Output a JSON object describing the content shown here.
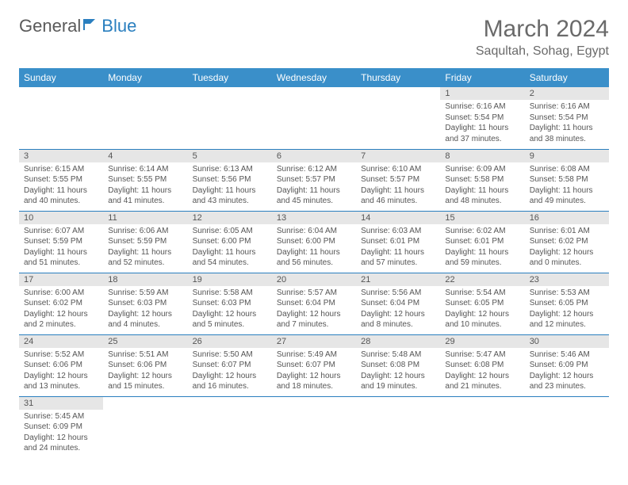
{
  "logo": {
    "part1": "General",
    "part2": "Blue"
  },
  "title": "March 2024",
  "location": "Saqultah, Sohag, Egypt",
  "colors": {
    "header_bg": "#3a8fc9",
    "header_text": "#ffffff",
    "daynum_bg": "#e6e6e6",
    "border": "#2a7fbf",
    "text": "#555555",
    "title_text": "#6a6a6a"
  },
  "weekdays": [
    "Sunday",
    "Monday",
    "Tuesday",
    "Wednesday",
    "Thursday",
    "Friday",
    "Saturday"
  ],
  "weeks": [
    [
      null,
      null,
      null,
      null,
      null,
      {
        "n": "1",
        "sunrise": "Sunrise: 6:16 AM",
        "sunset": "Sunset: 5:54 PM",
        "daylight": "Daylight: 11 hours and 37 minutes."
      },
      {
        "n": "2",
        "sunrise": "Sunrise: 6:16 AM",
        "sunset": "Sunset: 5:54 PM",
        "daylight": "Daylight: 11 hours and 38 minutes."
      }
    ],
    [
      {
        "n": "3",
        "sunrise": "Sunrise: 6:15 AM",
        "sunset": "Sunset: 5:55 PM",
        "daylight": "Daylight: 11 hours and 40 minutes."
      },
      {
        "n": "4",
        "sunrise": "Sunrise: 6:14 AM",
        "sunset": "Sunset: 5:55 PM",
        "daylight": "Daylight: 11 hours and 41 minutes."
      },
      {
        "n": "5",
        "sunrise": "Sunrise: 6:13 AM",
        "sunset": "Sunset: 5:56 PM",
        "daylight": "Daylight: 11 hours and 43 minutes."
      },
      {
        "n": "6",
        "sunrise": "Sunrise: 6:12 AM",
        "sunset": "Sunset: 5:57 PM",
        "daylight": "Daylight: 11 hours and 45 minutes."
      },
      {
        "n": "7",
        "sunrise": "Sunrise: 6:10 AM",
        "sunset": "Sunset: 5:57 PM",
        "daylight": "Daylight: 11 hours and 46 minutes."
      },
      {
        "n": "8",
        "sunrise": "Sunrise: 6:09 AM",
        "sunset": "Sunset: 5:58 PM",
        "daylight": "Daylight: 11 hours and 48 minutes."
      },
      {
        "n": "9",
        "sunrise": "Sunrise: 6:08 AM",
        "sunset": "Sunset: 5:58 PM",
        "daylight": "Daylight: 11 hours and 49 minutes."
      }
    ],
    [
      {
        "n": "10",
        "sunrise": "Sunrise: 6:07 AM",
        "sunset": "Sunset: 5:59 PM",
        "daylight": "Daylight: 11 hours and 51 minutes."
      },
      {
        "n": "11",
        "sunrise": "Sunrise: 6:06 AM",
        "sunset": "Sunset: 5:59 PM",
        "daylight": "Daylight: 11 hours and 52 minutes."
      },
      {
        "n": "12",
        "sunrise": "Sunrise: 6:05 AM",
        "sunset": "Sunset: 6:00 PM",
        "daylight": "Daylight: 11 hours and 54 minutes."
      },
      {
        "n": "13",
        "sunrise": "Sunrise: 6:04 AM",
        "sunset": "Sunset: 6:00 PM",
        "daylight": "Daylight: 11 hours and 56 minutes."
      },
      {
        "n": "14",
        "sunrise": "Sunrise: 6:03 AM",
        "sunset": "Sunset: 6:01 PM",
        "daylight": "Daylight: 11 hours and 57 minutes."
      },
      {
        "n": "15",
        "sunrise": "Sunrise: 6:02 AM",
        "sunset": "Sunset: 6:01 PM",
        "daylight": "Daylight: 11 hours and 59 minutes."
      },
      {
        "n": "16",
        "sunrise": "Sunrise: 6:01 AM",
        "sunset": "Sunset: 6:02 PM",
        "daylight": "Daylight: 12 hours and 0 minutes."
      }
    ],
    [
      {
        "n": "17",
        "sunrise": "Sunrise: 6:00 AM",
        "sunset": "Sunset: 6:02 PM",
        "daylight": "Daylight: 12 hours and 2 minutes."
      },
      {
        "n": "18",
        "sunrise": "Sunrise: 5:59 AM",
        "sunset": "Sunset: 6:03 PM",
        "daylight": "Daylight: 12 hours and 4 minutes."
      },
      {
        "n": "19",
        "sunrise": "Sunrise: 5:58 AM",
        "sunset": "Sunset: 6:03 PM",
        "daylight": "Daylight: 12 hours and 5 minutes."
      },
      {
        "n": "20",
        "sunrise": "Sunrise: 5:57 AM",
        "sunset": "Sunset: 6:04 PM",
        "daylight": "Daylight: 12 hours and 7 minutes."
      },
      {
        "n": "21",
        "sunrise": "Sunrise: 5:56 AM",
        "sunset": "Sunset: 6:04 PM",
        "daylight": "Daylight: 12 hours and 8 minutes."
      },
      {
        "n": "22",
        "sunrise": "Sunrise: 5:54 AM",
        "sunset": "Sunset: 6:05 PM",
        "daylight": "Daylight: 12 hours and 10 minutes."
      },
      {
        "n": "23",
        "sunrise": "Sunrise: 5:53 AM",
        "sunset": "Sunset: 6:05 PM",
        "daylight": "Daylight: 12 hours and 12 minutes."
      }
    ],
    [
      {
        "n": "24",
        "sunrise": "Sunrise: 5:52 AM",
        "sunset": "Sunset: 6:06 PM",
        "daylight": "Daylight: 12 hours and 13 minutes."
      },
      {
        "n": "25",
        "sunrise": "Sunrise: 5:51 AM",
        "sunset": "Sunset: 6:06 PM",
        "daylight": "Daylight: 12 hours and 15 minutes."
      },
      {
        "n": "26",
        "sunrise": "Sunrise: 5:50 AM",
        "sunset": "Sunset: 6:07 PM",
        "daylight": "Daylight: 12 hours and 16 minutes."
      },
      {
        "n": "27",
        "sunrise": "Sunrise: 5:49 AM",
        "sunset": "Sunset: 6:07 PM",
        "daylight": "Daylight: 12 hours and 18 minutes."
      },
      {
        "n": "28",
        "sunrise": "Sunrise: 5:48 AM",
        "sunset": "Sunset: 6:08 PM",
        "daylight": "Daylight: 12 hours and 19 minutes."
      },
      {
        "n": "29",
        "sunrise": "Sunrise: 5:47 AM",
        "sunset": "Sunset: 6:08 PM",
        "daylight": "Daylight: 12 hours and 21 minutes."
      },
      {
        "n": "30",
        "sunrise": "Sunrise: 5:46 AM",
        "sunset": "Sunset: 6:09 PM",
        "daylight": "Daylight: 12 hours and 23 minutes."
      }
    ],
    [
      {
        "n": "31",
        "sunrise": "Sunrise: 5:45 AM",
        "sunset": "Sunset: 6:09 PM",
        "daylight": "Daylight: 12 hours and 24 minutes."
      },
      null,
      null,
      null,
      null,
      null,
      null
    ]
  ]
}
